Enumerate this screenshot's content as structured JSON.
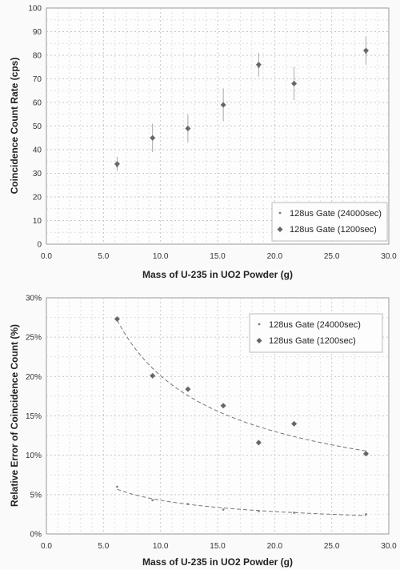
{
  "chart_data": [
    {
      "type": "scatter",
      "xlabel": "Mass of U-235 in UO2 Powder (g)",
      "ylabel": "Coincidence Count Rate (cps)",
      "xlim": [
        0,
        30
      ],
      "ylim": [
        0,
        100
      ],
      "x_ticks": [
        "0.0",
        "5.0",
        "10.0",
        "15.0",
        "20.0",
        "25.0",
        "30.0"
      ],
      "y_ticks": [
        "0",
        "10",
        "20",
        "30",
        "40",
        "50",
        "60",
        "70",
        "80",
        "90",
        "100"
      ],
      "grid": true,
      "legend_position": "bottom-right",
      "series": [
        {
          "name": "128us Gate (24000sec)",
          "marker": "point",
          "x": [
            6.2,
            9.3,
            12.4,
            15.5,
            18.6,
            21.7,
            28.0
          ],
          "y": [
            33,
            45,
            49,
            59,
            75,
            68,
            81
          ]
        },
        {
          "name": "128us Gate (1200sec)",
          "marker": "diamond",
          "x": [
            6.2,
            9.3,
            12.4,
            15.5,
            18.6,
            21.7,
            28.0
          ],
          "y": [
            34,
            45,
            49,
            59,
            76,
            68,
            82
          ],
          "error": [
            3,
            6,
            6,
            7,
            5,
            7,
            6
          ]
        }
      ]
    },
    {
      "type": "scatter",
      "xlabel": "Mass of U-235 in UO2 Powder (g)",
      "ylabel": "Relative Error of Coincidence Count (%)",
      "xlim": [
        0,
        30
      ],
      "ylim": [
        0,
        30
      ],
      "x_ticks": [
        "0.0",
        "5.0",
        "10.0",
        "15.0",
        "20.0",
        "25.0",
        "30.0"
      ],
      "y_ticks": [
        "0%",
        "5%",
        "10%",
        "15%",
        "20%",
        "25%",
        "30%"
      ],
      "grid": true,
      "legend_position": "top-right",
      "trendline": "power (dashed)",
      "series": [
        {
          "name": "128us Gate (24000sec)",
          "marker": "point",
          "x": [
            6.2,
            9.3,
            12.4,
            15.5,
            18.6,
            21.7,
            28.0
          ],
          "y": [
            6.0,
            4.3,
            3.8,
            3.1,
            2.9,
            2.7,
            2.5
          ]
        },
        {
          "name": "128us Gate (1200sec)",
          "marker": "diamond",
          "x": [
            6.2,
            9.3,
            12.4,
            15.5,
            18.6,
            21.7,
            28.0
          ],
          "y": [
            27.3,
            20.1,
            18.4,
            16.3,
            11.6,
            14.0,
            10.2
          ]
        }
      ]
    }
  ]
}
